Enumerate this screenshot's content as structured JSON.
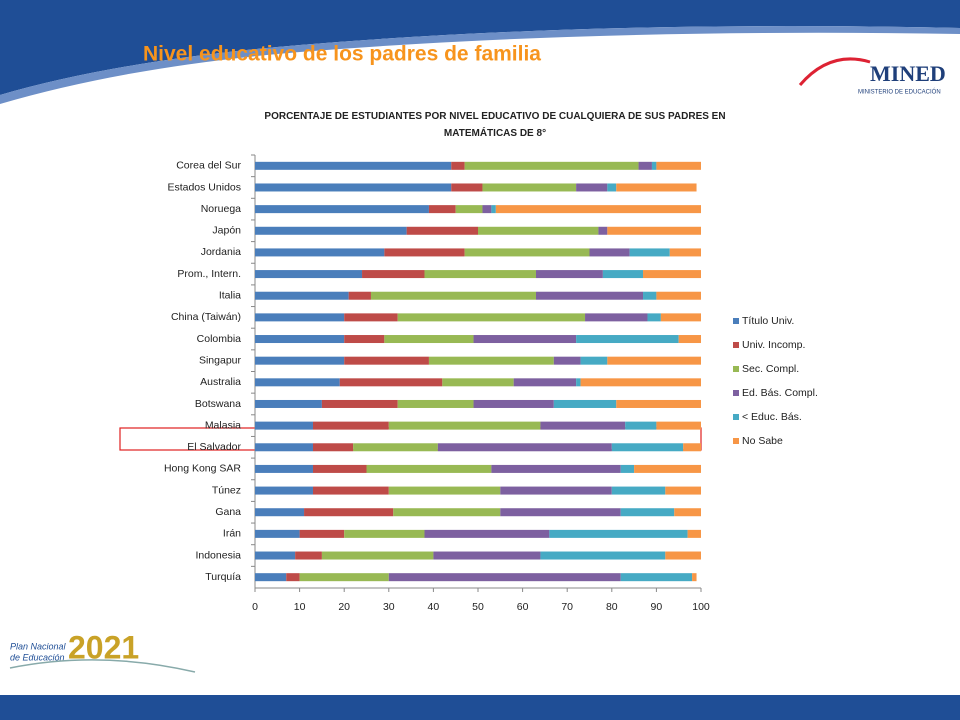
{
  "slide": {
    "title": "Nivel educativo de los padres de familia",
    "logo": "MINED",
    "logo_subtitle": "MINISTERIO DE EDUCACIÓN",
    "plan_line1": "Plan Nacional",
    "plan_line2": "de Educación",
    "plan_year": "2021"
  },
  "chart_data": {
    "type": "bar",
    "orientation": "horizontal",
    "stacked": true,
    "title": "PORCENTAJE DE ESTUDIANTES POR NIVEL EDUCATIVO DE CUALQUIERA DE SUS PADRES EN MATEMÁTICAS DE 8°",
    "categories": [
      "Corea del Sur",
      "Estados Unidos",
      "Noruega",
      "Japón",
      "Jordania",
      "Prom., Intern.",
      "Italia",
      "China (Taiwán)",
      "Colombia",
      "Singapur",
      "Australia",
      "Botswana",
      "Malasia",
      "El Salvador",
      "Hong Kong SAR",
      "Túnez",
      "Gana",
      "Irán",
      "Indonesia",
      "Turquía"
    ],
    "series": [
      {
        "name": "Título Univ.",
        "color": "#4a7ebb",
        "values": [
          44,
          44,
          39,
          34,
          29,
          24,
          21,
          20,
          20,
          20,
          19,
          15,
          13,
          13,
          13,
          13,
          11,
          10,
          9,
          7
        ]
      },
      {
        "name": "Univ. Incomp.",
        "color": "#be4b48",
        "values": [
          3,
          7,
          6,
          16,
          18,
          14,
          5,
          12,
          9,
          19,
          23,
          17,
          17,
          9,
          12,
          17,
          20,
          10,
          6,
          3
        ]
      },
      {
        "name": "Sec. Compl.",
        "color": "#98b954",
        "values": [
          39,
          21,
          6,
          27,
          28,
          25,
          37,
          42,
          20,
          28,
          16,
          17,
          34,
          19,
          28,
          25,
          24,
          18,
          25,
          20
        ]
      },
      {
        "name": "Ed. Bás. Compl.",
        "color": "#7d60a0",
        "values": [
          3,
          7,
          2,
          2,
          9,
          15,
          24,
          14,
          23,
          6,
          14,
          18,
          19,
          39,
          29,
          25,
          27,
          28,
          24,
          52
        ]
      },
      {
        "name": "< Educ. Bás.",
        "color": "#46aac4",
        "values": [
          1,
          2,
          1,
          0,
          9,
          9,
          3,
          3,
          23,
          6,
          1,
          14,
          7,
          16,
          3,
          12,
          12,
          31,
          28,
          16
        ]
      },
      {
        "name": "No Sabe",
        "color": "#f79646",
        "values": [
          10,
          18,
          46,
          21,
          7,
          13,
          10,
          9,
          5,
          21,
          27,
          19,
          10,
          4,
          15,
          8,
          6,
          3,
          8,
          1
        ]
      }
    ],
    "xlim": [
      0,
      100
    ],
    "xticks": [
      0,
      10,
      20,
      30,
      40,
      50,
      60,
      70,
      80,
      90,
      100
    ],
    "grid": false,
    "legend": "right"
  }
}
